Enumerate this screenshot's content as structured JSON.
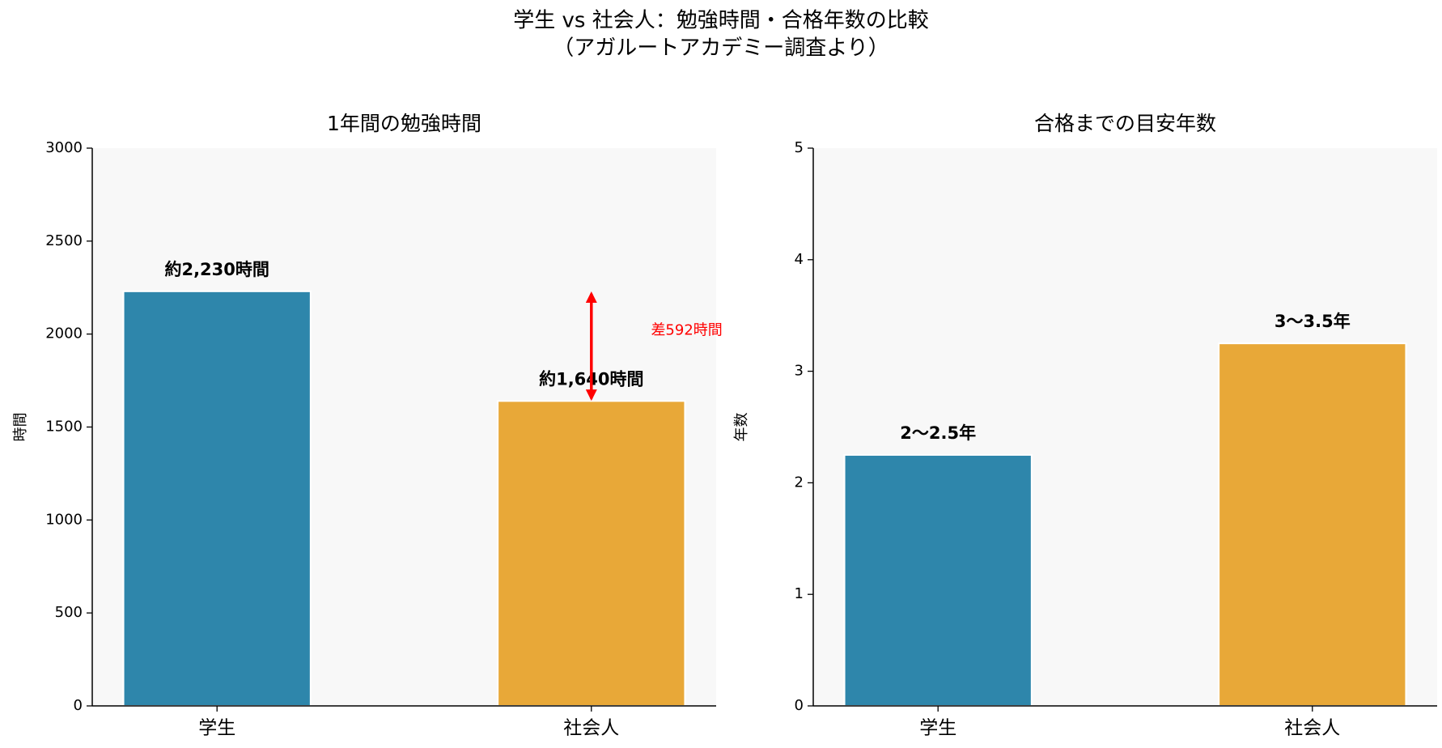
{
  "suptitle": "学生 vs 社会人：勉強時間・合格年数の比較",
  "subtitle": "（アガルートアカデミー調査より）",
  "chart_data": [
    {
      "type": "bar",
      "title": "1年間の勉強時間",
      "ylabel": "時間",
      "categories": [
        "学生",
        "社会人"
      ],
      "values": [
        2230,
        1640
      ],
      "value_labels": [
        "約2,230時間",
        "約1,640時間"
      ],
      "colors": [
        "#2e86ab",
        "#e8a838"
      ],
      "ylim": [
        0,
        3000
      ],
      "yticks": [
        0,
        500,
        1000,
        1500,
        2000,
        2500,
        3000
      ],
      "annotation": "差592時間",
      "annotation_color": "#ff0000"
    },
    {
      "type": "bar",
      "title": "合格までの目安年数",
      "ylabel": "年数",
      "categories": [
        "学生",
        "社会人"
      ],
      "values": [
        2.25,
        3.25
      ],
      "value_labels": [
        "2〜2.5年",
        "3〜3.5年"
      ],
      "colors": [
        "#2e86ab",
        "#e8a838"
      ],
      "ylim": [
        0,
        5
      ],
      "yticks": [
        0,
        1,
        2,
        3,
        4,
        5
      ]
    }
  ]
}
